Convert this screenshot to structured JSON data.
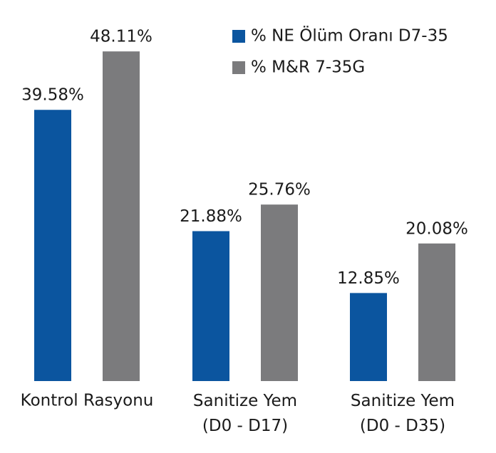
{
  "chart_data": {
    "type": "bar",
    "categories": [
      "Kontrol Rasyonu",
      "Sanitize Yem\n(D0 - D17)",
      "Sanitize Yem\n(D0 - D35)"
    ],
    "series": [
      {
        "name": "% NE Ölüm Oranı D7-35",
        "color": "#0b559f",
        "values": [
          39.58,
          21.88,
          12.85
        ],
        "value_labels": [
          "39.58%",
          "21.88%",
          "12.85%"
        ]
      },
      {
        "name": "% M&R 7-35G",
        "color": "#7b7b7d",
        "values": [
          48.11,
          25.76,
          20.08
        ],
        "value_labels": [
          "48.11%",
          "25.76%",
          "20.08%"
        ]
      }
    ],
    "legend": "top-right"
  }
}
